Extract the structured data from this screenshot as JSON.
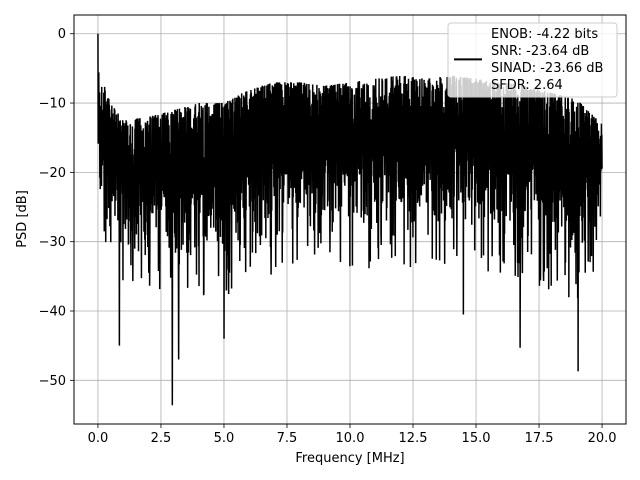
{
  "chart_data": {
    "type": "line",
    "title": "",
    "xlabel": "Frequency [MHz]",
    "ylabel": "PSD [dB]",
    "xlim": [
      -0.95,
      20.95
    ],
    "ylim": [
      -56.3,
      2.7
    ],
    "xticks": [
      0.0,
      2.5,
      5.0,
      7.5,
      10.0,
      12.5,
      15.0,
      17.5,
      20.0
    ],
    "xtick_labels": [
      "0.0",
      "2.5",
      "5.0",
      "7.5",
      "10.0",
      "12.5",
      "15.0",
      "17.5",
      "20.0"
    ],
    "yticks": [
      0,
      -10,
      -20,
      -30,
      -40,
      -50
    ],
    "ytick_labels": [
      "0",
      "−10",
      "−20",
      "−30",
      "−40",
      "−50"
    ],
    "grid": true,
    "legend_position": "top-right",
    "series": [
      {
        "name": "ENOB: -4.22 bits\nSNR: -23.64 dB\nSINAD: -23.66 dB\nSFDR: 2.64",
        "color": "#000000",
        "x_range": [
          0,
          20
        ],
        "envelope": {
          "x": [
            0,
            0.5,
            1,
            2,
            3,
            4,
            5,
            6,
            7,
            8,
            9,
            10,
            11,
            12,
            13,
            14,
            15,
            16,
            17,
            18,
            19,
            20
          ],
          "upper": [
            -5,
            -10,
            -12.5,
            -12,
            -11,
            -10,
            -10,
            -8,
            -7,
            -7,
            -7.5,
            -7,
            -6.5,
            -6,
            -6.5,
            -6,
            -6.5,
            -7,
            -7.5,
            -8.5,
            -9.5,
            -13
          ],
          "lower": [
            -26,
            -29,
            -33,
            -33,
            -33,
            -34,
            -34,
            -33,
            -31,
            -30,
            -30,
            -30,
            -30,
            -30,
            -30,
            -30,
            -30,
            -31,
            -33,
            -34,
            -35,
            -28
          ]
        },
        "peaks": [
          {
            "x": 0.0,
            "y": 0.0
          },
          {
            "x": 0.85,
            "y": -45.0
          },
          {
            "x": 2.95,
            "y": -53.6
          },
          {
            "x": 3.2,
            "y": -47.0
          },
          {
            "x": 5.0,
            "y": -44.0
          },
          {
            "x": 14.5,
            "y": -40.5
          },
          {
            "x": 16.75,
            "y": -45.3
          },
          {
            "x": 19.05,
            "y": -48.7
          }
        ]
      }
    ]
  }
}
